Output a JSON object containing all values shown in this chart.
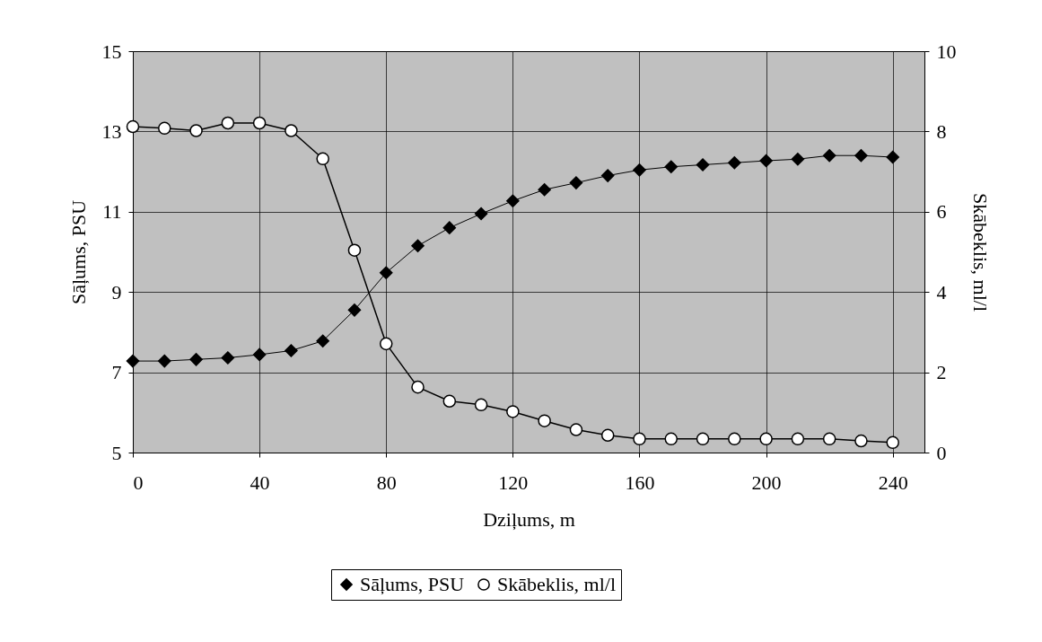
{
  "chart_data": {
    "type": "line",
    "xlabel": "Dziļums, m",
    "ylabel": "Sāļums, PSU",
    "y2label": "Skābeklis, ml/l",
    "x": [
      0,
      10,
      20,
      30,
      40,
      50,
      60,
      70,
      80,
      90,
      100,
      110,
      120,
      130,
      140,
      150,
      160,
      170,
      180,
      190,
      200,
      210,
      220,
      230,
      240
    ],
    "series": [
      {
        "name": "Sāļums, PSU",
        "color": "#000000",
        "marker": "diamond",
        "values": [
          7.28,
          7.28,
          7.32,
          7.36,
          7.44,
          7.54,
          7.78,
          8.55,
          9.48,
          10.15,
          10.6,
          10.95,
          11.27,
          11.55,
          11.72,
          11.9,
          12.04,
          12.12,
          12.17,
          12.22,
          12.27,
          12.31,
          12.4,
          12.4,
          12.36
        ]
      },
      {
        "name": "Skābeklis, ml/l",
        "color": "#000000",
        "marker": "circle",
        "axis": "y2",
        "values": [
          8.12,
          8.08,
          8.02,
          8.21,
          8.21,
          8.02,
          7.32,
          5.04,
          2.71,
          1.63,
          1.28,
          1.19,
          1.02,
          0.79,
          0.57,
          0.43,
          0.34,
          0.34,
          0.34,
          0.34,
          0.34,
          0.34,
          0.34,
          0.29,
          0.25
        ]
      }
    ],
    "xlim": [
      0,
      250
    ],
    "xticks": [
      0,
      40,
      80,
      120,
      160,
      200,
      240
    ],
    "ylim": [
      5,
      15
    ],
    "yticks": [
      5,
      7,
      9,
      11,
      13,
      15
    ],
    "y2lim": [
      0,
      10
    ],
    "y2ticks": [
      0,
      2,
      4,
      6,
      8,
      10
    ],
    "grid": true,
    "legend": "bottom"
  }
}
